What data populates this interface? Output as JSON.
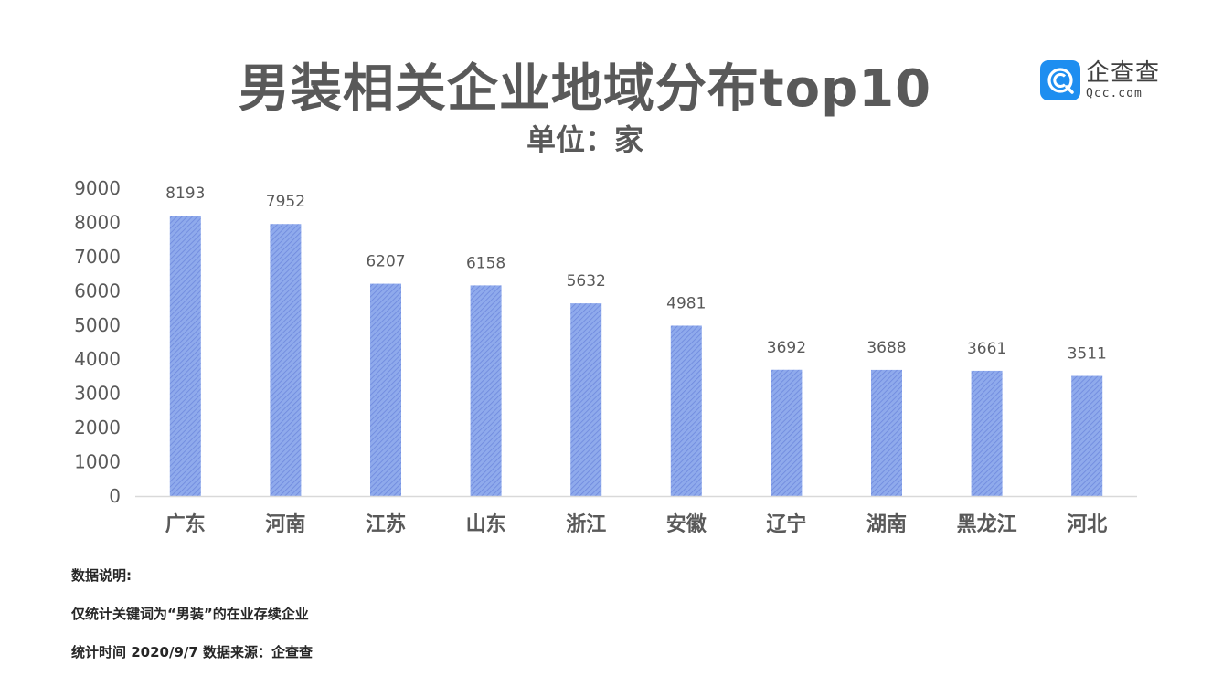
{
  "header": {
    "title": "男装相关企业地域分布top10",
    "subtitle": "单位：家"
  },
  "logo": {
    "name": "企查查",
    "domain": "Qcc.com",
    "icon": "qcc-logo-icon",
    "color": "#1e8ef0"
  },
  "colors": {
    "bar_fill": "#8faaec",
    "bar_hatch": "#6d88dd",
    "text": "#595959",
    "axis": "#d9d9d9"
  },
  "chart_data": {
    "type": "bar",
    "title": "男装相关企业地域分布top10",
    "subtitle": "单位：家",
    "categories": [
      "广东",
      "河南",
      "江苏",
      "山东",
      "浙江",
      "安徽",
      "辽宁",
      "湖南",
      "黑龙江",
      "河北"
    ],
    "values": [
      8193,
      7952,
      6207,
      6158,
      5632,
      4981,
      3692,
      3688,
      3661,
      3511
    ],
    "ylim": [
      0,
      9000
    ],
    "yticks": [
      0,
      1000,
      2000,
      3000,
      4000,
      5000,
      6000,
      7000,
      8000,
      9000
    ],
    "xlabel": "",
    "ylabel": "",
    "grid": false,
    "data_labels": true,
    "legend": "none"
  },
  "notes": {
    "heading": "数据说明:",
    "line1": "仅统计关键词为“男装”的在业存续企业",
    "line2": "统计时间 2020/9/7    数据来源：企查查"
  }
}
